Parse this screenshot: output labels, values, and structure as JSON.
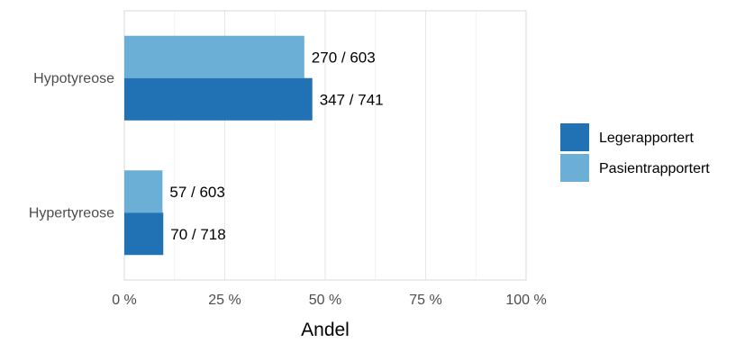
{
  "chart_data": {
    "type": "bar",
    "orientation": "horizontal",
    "categories": [
      "Hypotyreose",
      "Hypertyreose"
    ],
    "series": [
      {
        "name": "Pasientrapportert",
        "color": "#6baed6",
        "values": [
          0.448,
          0.095
        ],
        "labels": [
          "270 / 603",
          "57 / 603"
        ]
      },
      {
        "name": "Legerapportert",
        "color": "#2171b5",
        "values": [
          0.468,
          0.097
        ],
        "labels": [
          "347 / 741",
          "70 / 718"
        ]
      }
    ],
    "xlabel": "Andel",
    "ylabel": "",
    "xlim": [
      0,
      1
    ],
    "x_ticks": [
      {
        "value": 0,
        "label": "0 %"
      },
      {
        "value": 0.25,
        "label": "25 %"
      },
      {
        "value": 0.5,
        "label": "50 %"
      },
      {
        "value": 0.75,
        "label": "75 %"
      },
      {
        "value": 1,
        "label": "100 %"
      }
    ],
    "grid": true,
    "legend": {
      "placement": "right",
      "entries": [
        {
          "name": "Legerapportert",
          "color": "#2171b5"
        },
        {
          "name": "Pasientrapportert",
          "color": "#6baed6"
        }
      ]
    }
  }
}
